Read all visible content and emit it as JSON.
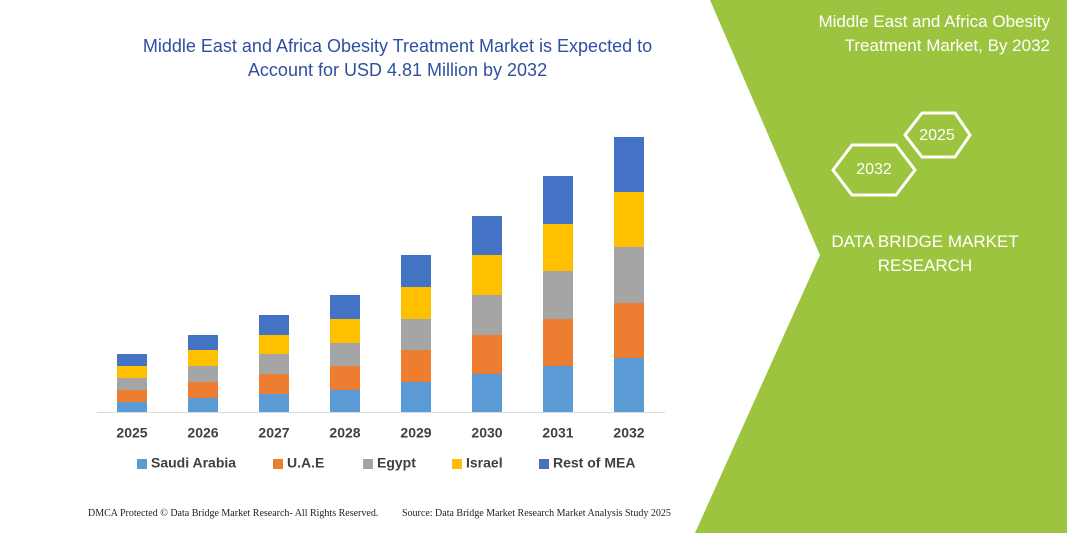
{
  "chart_data": {
    "type": "stacked-bar",
    "title": "Middle East and Africa Obesity Treatment Market is Expected to Account for USD  4.81 Million by 2032",
    "categories": [
      "2025",
      "2026",
      "2027",
      "2028",
      "2029",
      "2030",
      "2031",
      "2032"
    ],
    "series": [
      {
        "name": "Saudi Arabia",
        "color": "#5b9bd5",
        "values": [
          10,
          14,
          18,
          22,
          30,
          38,
          46,
          54
        ]
      },
      {
        "name": "U.A.E",
        "color": "#ed7d31",
        "values": [
          12,
          16,
          20,
          24,
          32,
          39,
          47,
          55
        ]
      },
      {
        "name": "Egypt",
        "color": "#a5a5a5",
        "values": [
          12,
          16,
          20,
          23,
          31,
          40,
          48,
          56
        ]
      },
      {
        "name": "Israel",
        "color": "#ffc000",
        "values": [
          12,
          16,
          19,
          24,
          32,
          40,
          47,
          55
        ]
      },
      {
        "name": "Rest of MEA",
        "color": "#4472c4",
        "values": [
          12,
          15,
          20,
          24,
          32,
          39,
          48,
          55
        ]
      }
    ],
    "ylim": [
      0,
      300
    ],
    "legend": "bottom"
  },
  "panel": {
    "title": "Middle East and Africa Obesity Treatment Market, By 2032",
    "hexagons": [
      "2025",
      "2032"
    ],
    "brand": "DATA BRIDGE MARKET RESEARCH"
  },
  "footer": {
    "left": "DMCA Protected © Data Bridge Market Research-  All Rights Reserved.",
    "right": "Source: Data Bridge Market Research  Market Analysis Study 2025"
  }
}
